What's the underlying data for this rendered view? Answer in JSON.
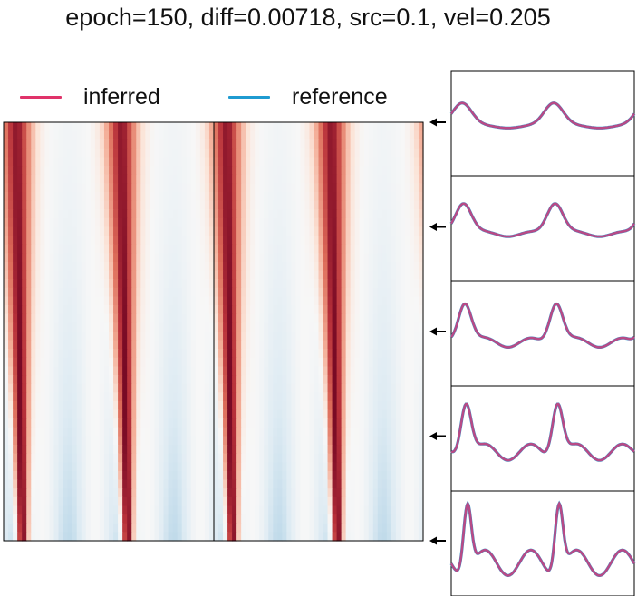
{
  "title": "epoch=150, diff=0.00718, src=0.1, vel=0.205",
  "colors": {
    "inferred": "#e0336a",
    "reference": "#1f9bd1",
    "overlap": "#b84a86",
    "red_max": "#67001f",
    "blue_max": "#2d74b5"
  },
  "chart_data": {
    "type": "heatmap",
    "title": "epoch=150, diff=0.00718, src=0.1, vel=0.205",
    "legend": {
      "placement": "top-left",
      "entries": [
        {
          "name": "inferred",
          "color": "#e0336a"
        },
        {
          "name": "reference",
          "color": "#1f9bd1"
        }
      ]
    },
    "heatmaps": [
      {
        "name": "inferred"
      },
      {
        "name": "reference"
      }
    ],
    "time_profiles": [
      {
        "index": 1,
        "position": 0.0
      },
      {
        "index": 2,
        "position": 0.25
      },
      {
        "index": 3,
        "position": 0.5
      },
      {
        "index": 4,
        "position": 0.75
      },
      {
        "index": 5,
        "position": 1.0
      }
    ],
    "grid": false,
    "axes_ticks": false
  }
}
